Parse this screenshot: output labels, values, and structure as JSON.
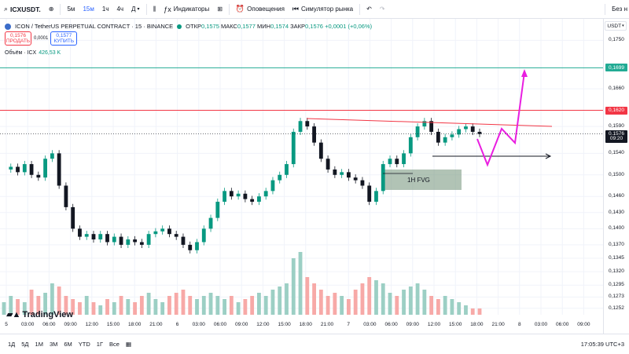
{
  "toolbar": {
    "symbol": "ICXUSDT.",
    "intervals": [
      {
        "label": "5м",
        "active": false
      },
      {
        "label": "15м",
        "active": true
      },
      {
        "label": "1ч",
        "active": false
      },
      {
        "label": "4ч",
        "active": false
      },
      {
        "label": "Д",
        "active": false
      }
    ],
    "indicators_label": "Индикаторы",
    "alerts_label": "Оповещения",
    "replay_label": "Симулятор рынка",
    "right_label": "Без н"
  },
  "legend": {
    "title": "ICON / TetherUS PERPETUAL CONTRACT · 15 · BINANCE",
    "open_label": "ОТКР",
    "open": "0,1575",
    "high_label": "МАКС",
    "high": "0,1577",
    "low_label": "МИН",
    "low": "0,1574",
    "close_label": "ЗАКР",
    "close": "0,1576",
    "change": "+0,0001 (+0,06%)",
    "dot_color": "#089981"
  },
  "trade": {
    "sell_price": "0,1576",
    "sell_label": "ПРОДАТЬ",
    "spread": "0,0001",
    "buy_price": "0,1577",
    "buy_label": "КУПИТЬ"
  },
  "volume_legend": {
    "label": "Объём · ICX",
    "value": "426,53 K"
  },
  "currency_button": "USDT",
  "price_axis": {
    "ticks": [
      {
        "label": "0,1750",
        "value": 0.175
      },
      {
        "label": "0,1660",
        "value": 0.166
      },
      {
        "label": "0,1590",
        "value": 0.159
      },
      {
        "label": "0,1540",
        "value": 0.154
      },
      {
        "label": "0,1500",
        "value": 0.15
      },
      {
        "label": "0,1460",
        "value": 0.146
      },
      {
        "label": "0,1430",
        "value": 0.143
      },
      {
        "label": "0,1400",
        "value": 0.14
      },
      {
        "label": "0,1370",
        "value": 0.137
      },
      {
        "label": "0,1345",
        "value": 0.1345
      },
      {
        "label": "0,1320",
        "value": 0.132
      },
      {
        "label": "0,1295",
        "value": 0.1295
      },
      {
        "label": "0,1273",
        "value": 0.1273
      },
      {
        "label": "0,1252",
        "value": 0.1252
      }
    ],
    "labels": [
      {
        "text": "0,1699",
        "value": 0.1699,
        "color": "#22ab94"
      },
      {
        "text": "0,1620",
        "value": 0.162,
        "color": "#f23645"
      },
      {
        "text": "0,1576",
        "value": 0.1576,
        "color": "#131722"
      },
      {
        "text": "09:20",
        "value": 0.1567,
        "color": "#131722"
      }
    ]
  },
  "time_axis": {
    "ticks": [
      "5",
      "03:00",
      "06:00",
      "09:00",
      "12:00",
      "15:00",
      "18:00",
      "21:00",
      "6",
      "03:00",
      "06:00",
      "09:00",
      "12:00",
      "15:00",
      "18:00",
      "21:00",
      "7",
      "03:00",
      "06:00",
      "09:00",
      "12:00",
      "15:00",
      "18:00",
      "21:00",
      "8",
      "03:00",
      "06:00",
      "09:00"
    ]
  },
  "chart_data": {
    "type": "candlestick",
    "title": "ICON / TetherUS PERPETUAL CONTRACT · 15 · BINANCE",
    "ylim": [
      0.124,
      0.179
    ],
    "levels": [
      {
        "name": "horizontal",
        "value": 0.1699,
        "color": "#22ab94"
      },
      {
        "name": "horizontal",
        "value": 0.162,
        "color": "#f23645"
      }
    ],
    "price_path": [
      0.151,
      0.1515,
      0.1505,
      0.152,
      0.15,
      0.1495,
      0.153,
      0.154,
      0.148,
      0.144,
      0.14,
      0.1385,
      0.139,
      0.138,
      0.139,
      0.1375,
      0.1385,
      0.137,
      0.138,
      0.1375,
      0.137,
      0.139,
      0.1395,
      0.14,
      0.139,
      0.1385,
      0.137,
      0.136,
      0.1375,
      0.14,
      0.142,
      0.145,
      0.147,
      0.146,
      0.1465,
      0.1455,
      0.145,
      0.146,
      0.147,
      0.149,
      0.15,
      0.152,
      0.158,
      0.16,
      0.159,
      0.156,
      0.153,
      0.151,
      0.15,
      0.1505,
      0.1495,
      0.149,
      0.148,
      0.145,
      0.147,
      0.152,
      0.153,
      0.152,
      0.154,
      0.157,
      0.159,
      0.16,
      0.158,
      0.156,
      0.157,
      0.1575,
      0.1585,
      0.159,
      0.158,
      0.1576
    ],
    "volumes": [
      0.2,
      0.3,
      0.25,
      0.2,
      0.4,
      0.3,
      0.35,
      0.5,
      0.45,
      0.3,
      0.25,
      0.2,
      0.3,
      0.2,
      0.15,
      0.25,
      0.2,
      0.3,
      0.25,
      0.2,
      0.3,
      0.35,
      0.25,
      0.2,
      0.3,
      0.35,
      0.4,
      0.3,
      0.25,
      0.3,
      0.35,
      0.3,
      0.25,
      0.3,
      0.2,
      0.25,
      0.3,
      0.35,
      0.3,
      0.4,
      0.45,
      0.5,
      0.9,
      1.0,
      0.6,
      0.5,
      0.4,
      0.3,
      0.35,
      0.3,
      0.25,
      0.4,
      0.5,
      0.6,
      0.55,
      0.5,
      0.35,
      0.3,
      0.4,
      0.45,
      0.5,
      0.4,
      0.3,
      0.25,
      0.3,
      0.25,
      0.2,
      0.15,
      0.1,
      0.1
    ],
    "annotations": [
      {
        "text": "1H FVG",
        "value_top": 0.151,
        "value_bottom": 0.1472
      }
    ]
  },
  "bottom_bar": {
    "ranges": [
      "1Д",
      "5Д",
      "1М",
      "3М",
      "6М",
      "YTD",
      "1Г",
      "Все"
    ],
    "time": "17:05:39 UTC+3"
  },
  "logo": "TradingView"
}
